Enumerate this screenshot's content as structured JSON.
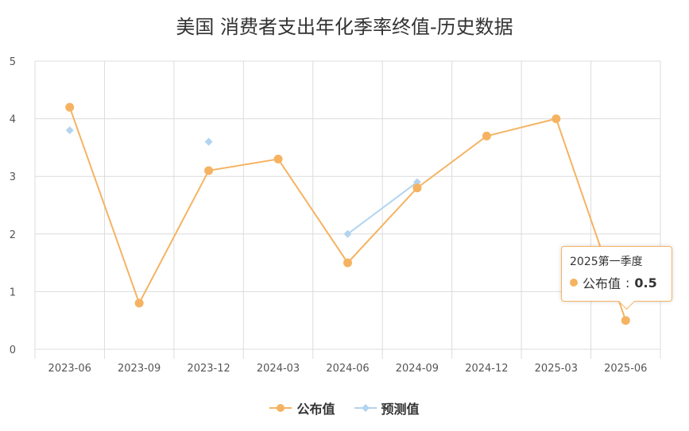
{
  "title": "美国 消费者支出年化季率终值-历史数据",
  "colors": {
    "published": "#f5b362",
    "forecast": "#b3d4ef",
    "grid": "#dcdcdc"
  },
  "chart_data": {
    "type": "line",
    "categories": [
      "2023-06",
      "2023-09",
      "2023-12",
      "2024-03",
      "2024-06",
      "2024-09",
      "2024-12",
      "2025-03",
      "2025-06"
    ],
    "ylim": [
      0,
      5
    ],
    "yticks": [
      0,
      1,
      2,
      3,
      4,
      5
    ],
    "grid": true,
    "legend_position": "bottom",
    "series": [
      {
        "name": "公布值",
        "marker": "circle",
        "values": [
          4.2,
          0.8,
          3.1,
          3.3,
          1.5,
          2.8,
          3.7,
          4.0,
          0.5
        ]
      },
      {
        "name": "预测值",
        "marker": "diamond",
        "values": [
          3.8,
          null,
          3.6,
          null,
          2.0,
          2.9,
          null,
          null,
          null
        ]
      }
    ]
  },
  "tooltip": {
    "title": "2025第一季度",
    "series_name": "公布值",
    "value": "0.5"
  }
}
